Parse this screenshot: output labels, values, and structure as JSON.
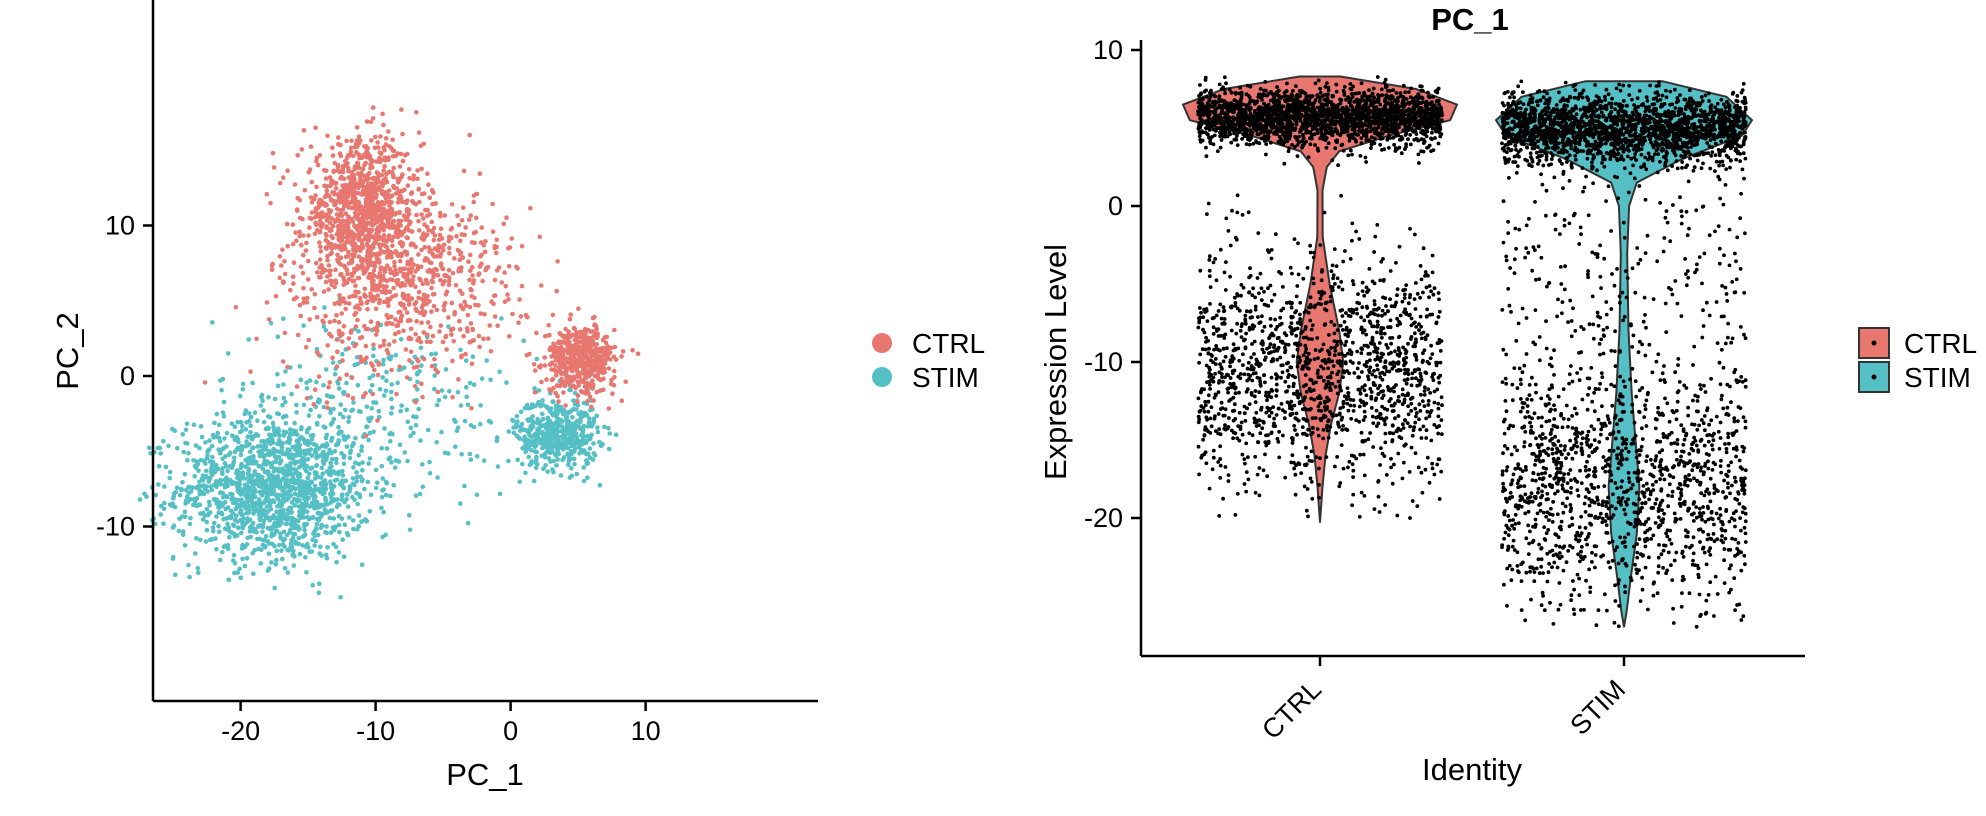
{
  "colors": {
    "CTRL": "#e8776f",
    "STIM": "#54bfc5",
    "points": "#000000"
  },
  "chart_data": [
    {
      "type": "scatter",
      "title": "",
      "xlabel": "PC_1",
      "ylabel": "PC_2",
      "xlim": [
        -28,
        10
      ],
      "ylim": [
        -16.5,
        20
      ],
      "xticks": [
        -20,
        -10,
        0,
        10
      ],
      "yticks": [
        -10,
        0,
        10
      ],
      "legend": {
        "position": "right",
        "entries": [
          "CTRL",
          "STIM"
        ]
      },
      "grid": false,
      "series": [
        {
          "name": "CTRL",
          "color": "#e8776f",
          "clusters": [
            {
              "center": [
                -11,
                11
              ],
              "spread": [
                2.2,
                2.3
              ],
              "weight": 0.42
            },
            {
              "center": [
                -7,
                7
              ],
              "spread": [
                4,
                2.6
              ],
              "weight": 0.23
            },
            {
              "center": [
                -10,
                4
              ],
              "spread": [
                3.5,
                3
              ],
              "weight": 0.12
            },
            {
              "center": [
                5.2,
                1.1
              ],
              "spread": [
                1.3,
                1.1
              ],
              "weight": 0.23
            }
          ]
        },
        {
          "name": "STIM",
          "color": "#54bfc5",
          "clusters": [
            {
              "center": [
                -17.5,
                -7.5
              ],
              "spread": [
                3.6,
                2.4
              ],
              "weight": 0.64
            },
            {
              "center": [
                3.5,
                -3.8
              ],
              "spread": [
                1.5,
                1.2
              ],
              "weight": 0.22
            },
            {
              "center": [
                -10,
                -2
              ],
              "spread": [
                6,
                3
              ],
              "weight": 0.14
            }
          ]
        }
      ]
    },
    {
      "type": "violin",
      "title": "PC_1",
      "xlabel": "Identity",
      "ylabel": "Expression Level",
      "categories": [
        "CTRL",
        "STIM"
      ],
      "ylim": [
        -29,
        10.5
      ],
      "yticks": [
        -20,
        -10,
        0,
        10
      ],
      "legend": {
        "position": "right",
        "entries": [
          "CTRL",
          "STIM"
        ]
      },
      "grid": false,
      "series": [
        {
          "name": "CTRL",
          "color": "#e8776f",
          "min": -20.3,
          "max": 8.3,
          "density": [
            [
              8.3,
              0.15
            ],
            [
              7.5,
              0.7
            ],
            [
              6.5,
              1.0
            ],
            [
              5.5,
              0.95
            ],
            [
              4.5,
              0.5
            ],
            [
              3.5,
              0.14
            ],
            [
              2.5,
              0.05
            ],
            [
              1,
              0.015
            ],
            [
              -2,
              0.02
            ],
            [
              -5,
              0.07
            ],
            [
              -8,
              0.14
            ],
            [
              -10,
              0.17
            ],
            [
              -12,
              0.14
            ],
            [
              -14,
              0.08
            ],
            [
              -16,
              0.04
            ],
            [
              -18,
              0.015
            ],
            [
              -20.3,
              0.0
            ]
          ],
          "points": [
            {
              "center": 5.7,
              "spread": 0.9,
              "weight": 0.58
            },
            {
              "center": -10.5,
              "spread": 3.6,
              "weight": 0.42
            }
          ]
        },
        {
          "name": "STIM",
          "color": "#54bfc5",
          "min": -27.0,
          "max": 8.0,
          "density": [
            [
              8.0,
              0.3
            ],
            [
              7.0,
              0.8
            ],
            [
              5.5,
              1.0
            ],
            [
              4.5,
              0.92
            ],
            [
              3.0,
              0.45
            ],
            [
              1.5,
              0.1
            ],
            [
              0,
              0.04
            ],
            [
              -3,
              0.025
            ],
            [
              -8,
              0.035
            ],
            [
              -12,
              0.06
            ],
            [
              -15,
              0.09
            ],
            [
              -18,
              0.12
            ],
            [
              -21,
              0.1
            ],
            [
              -24,
              0.05
            ],
            [
              -26,
              0.02
            ],
            [
              -27.0,
              0.0
            ]
          ],
          "points": [
            {
              "center": 5.0,
              "spread": 1.1,
              "weight": 0.55
            },
            {
              "center": -18.0,
              "spread": 4.0,
              "weight": 0.37
            },
            {
              "center": -5.0,
              "spread": 5.0,
              "weight": 0.08
            }
          ]
        }
      ]
    }
  ]
}
